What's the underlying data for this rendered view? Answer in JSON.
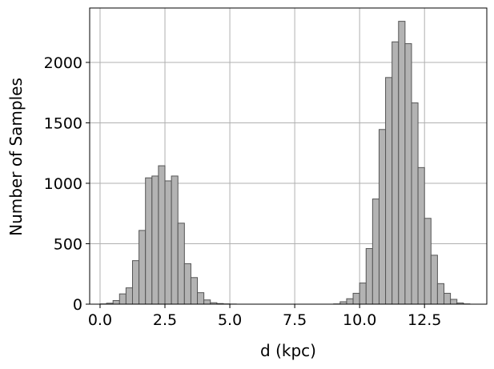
{
  "chart_data": {
    "type": "bar",
    "histogram": true,
    "xlabel": "d (kpc)",
    "ylabel": "Number of Samples",
    "xlim": [
      -0.4,
      14.9
    ],
    "ylim": [
      0,
      2450
    ],
    "xticks": [
      0.0,
      2.5,
      5.0,
      7.5,
      10.0,
      12.5
    ],
    "xtick_labels": [
      "0.0",
      "2.5",
      "5.0",
      "7.5",
      "10.0",
      "12.5"
    ],
    "yticks": [
      0,
      500,
      1000,
      1500,
      2000
    ],
    "ytick_labels": [
      "0",
      "500",
      "1000",
      "1500",
      "2000"
    ],
    "grid": true,
    "bar_fill": "#b3b3b3",
    "bar_edge": "#555555",
    "grid_color": "#b0b0b0",
    "bins": {
      "start": 0.0,
      "width": 0.25,
      "counts": [
        2,
        8,
        30,
        85,
        135,
        360,
        610,
        1045,
        1060,
        1145,
        1020,
        1060,
        670,
        335,
        220,
        95,
        35,
        12,
        5,
        2,
        1,
        0,
        0,
        0,
        0,
        0,
        0,
        0,
        0,
        0,
        0,
        0,
        0,
        0,
        0,
        0,
        2,
        20,
        45,
        90,
        175,
        460,
        870,
        1445,
        1875,
        2170,
        2340,
        2155,
        1665,
        1130,
        710,
        405,
        170,
        90,
        40,
        10,
        2
      ]
    }
  }
}
